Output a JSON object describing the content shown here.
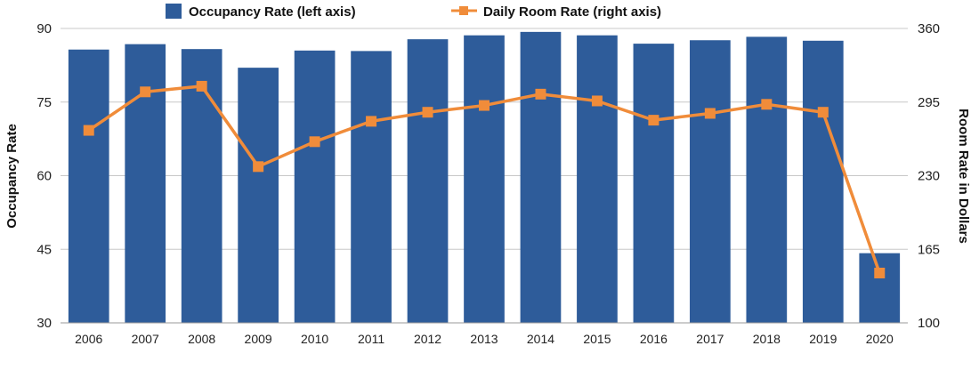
{
  "chart_data": {
    "type": "bar",
    "categories": [
      "2006",
      "2007",
      "2008",
      "2009",
      "2010",
      "2011",
      "2012",
      "2013",
      "2014",
      "2015",
      "2016",
      "2017",
      "2018",
      "2019",
      "2020"
    ],
    "series": [
      {
        "name": "Occupancy Rate (left axis)",
        "type": "bar",
        "axis": "left",
        "color": "#2e5c9a",
        "values": [
          85.7,
          86.8,
          85.8,
          82.0,
          85.5,
          85.4,
          87.8,
          88.6,
          89.3,
          88.6,
          86.9,
          87.6,
          88.3,
          87.5,
          44.2
        ]
      },
      {
        "name": "Daily Room Rate (right axis)",
        "type": "line",
        "axis": "right",
        "color": "#f08c3a",
        "values": [
          270,
          304,
          309,
          238,
          260,
          278,
          286,
          292,
          302,
          296,
          279,
          285,
          293,
          286,
          144
        ]
      }
    ],
    "ylabel": "Occupancy Rate",
    "y2label": "Room Rate in Dollars",
    "ylim": [
      30,
      90
    ],
    "y2lim": [
      100,
      360
    ],
    "yticks": [
      30,
      45,
      60,
      75,
      90
    ],
    "y2ticks": [
      100,
      165,
      230,
      295,
      360
    ],
    "grid": true,
    "legend": "top-center"
  }
}
